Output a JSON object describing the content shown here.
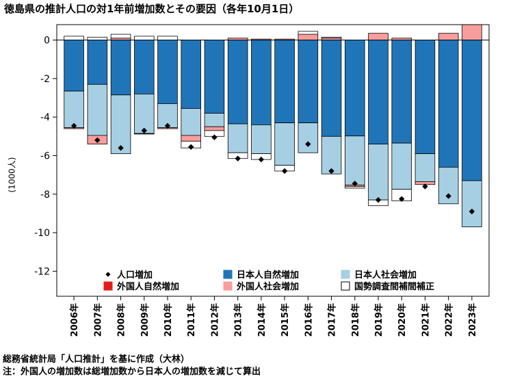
{
  "title": "徳島県の推計人口の対1年前増加数とその要因（各年10月1日）",
  "notes": [
    "総務省統計局「人口推計」を基に作成（大林）",
    "注：外国人の増加数は総増加数から日本人の増加数を減じて算出"
  ],
  "colors": {
    "jp_natural": "#2075b8",
    "jp_social": "#a6cfe3",
    "fr_natural": "#e31a1c",
    "fr_social": "#f89d9d",
    "census": "#ffffff",
    "marker": "#000000"
  },
  "chart_data": {
    "type": "bar",
    "stacked": true,
    "ylabel": "(1000人)",
    "ylim": [
      -13.3,
      0.8
    ],
    "yticks": [
      0,
      -2,
      -4,
      -6,
      -8,
      -10,
      -12
    ],
    "ytick_labels": [
      "0",
      "-2",
      "-4",
      "-6",
      "-8",
      "-10",
      "-12"
    ],
    "grid": false,
    "legend_position": "bottom-center",
    "categories": [
      "2006年",
      "2007年",
      "2008年",
      "2009年",
      "2010年",
      "2011年",
      "2012年",
      "2013年",
      "2014年",
      "2015年",
      "2016年",
      "2017年",
      "2018年",
      "2019年",
      "2020年",
      "2021年",
      "2022年",
      "2023年"
    ],
    "series": [
      {
        "name": "日本人自然増加",
        "key": "jp_natural",
        "kind": "bar",
        "values": [
          -2.65,
          -2.3,
          -2.85,
          -2.8,
          -3.3,
          -3.55,
          -3.8,
          -4.35,
          -4.4,
          -4.3,
          -4.3,
          -5.0,
          -4.98,
          -5.4,
          -5.35,
          -5.9,
          -6.6,
          -7.3
        ]
      },
      {
        "name": "日本人社会増加",
        "key": "jp_social",
        "kind": "bar",
        "values": [
          -1.9,
          -2.65,
          -3.05,
          -2.05,
          -1.25,
          -1.4,
          -0.7,
          -1.5,
          -1.5,
          -2.2,
          -1.55,
          -1.95,
          -2.55,
          -2.9,
          -2.4,
          -1.45,
          -1.9,
          -2.4
        ]
      },
      {
        "name": "外国人自然増加",
        "key": "fr_natural",
        "kind": "bar",
        "values": [
          0,
          0,
          0,
          0,
          0,
          0,
          0,
          0,
          0,
          0,
          0,
          0,
          0,
          0,
          0,
          0,
          0,
          0
        ]
      },
      {
        "name": "外国人社会増加",
        "key": "fr_social",
        "kind": "bar",
        "values": [
          -0.05,
          -0.45,
          0.1,
          -0.03,
          -0.05,
          -0.3,
          -0.2,
          0.1,
          0.05,
          0.05,
          0.3,
          0.1,
          -0.08,
          0.35,
          0.1,
          -0.15,
          0.35,
          0.8
        ]
      },
      {
        "name": "国勢調査間補間補正",
        "key": "census",
        "kind": "bar",
        "values": [
          0.2,
          0.15,
          0.2,
          0.2,
          0.2,
          -0.35,
          -0.3,
          -0.3,
          -0.3,
          -0.3,
          0.15,
          0.05,
          -0.08,
          -0.3,
          -0.6,
          0,
          0,
          0
        ]
      },
      {
        "name": "人口増加",
        "key": "total",
        "kind": "marker",
        "values": [
          -4.45,
          -5.2,
          -5.6,
          -4.7,
          -4.45,
          -5.55,
          -5.05,
          -6.15,
          -6.2,
          -6.8,
          -5.4,
          -6.8,
          -7.45,
          -8.3,
          -8.25,
          -7.6,
          -8.1,
          -8.9
        ]
      }
    ],
    "legend": [
      {
        "label": "人口増加",
        "key": "total"
      },
      {
        "label": "日本人自然増加",
        "key": "jp_natural"
      },
      {
        "label": "日本人社会増加",
        "key": "jp_social"
      },
      {
        "label": "外国人自然増加",
        "key": "fr_natural"
      },
      {
        "label": "外国人社会増加",
        "key": "fr_social"
      },
      {
        "label": "国勢調査間補間補正",
        "key": "census"
      }
    ]
  }
}
